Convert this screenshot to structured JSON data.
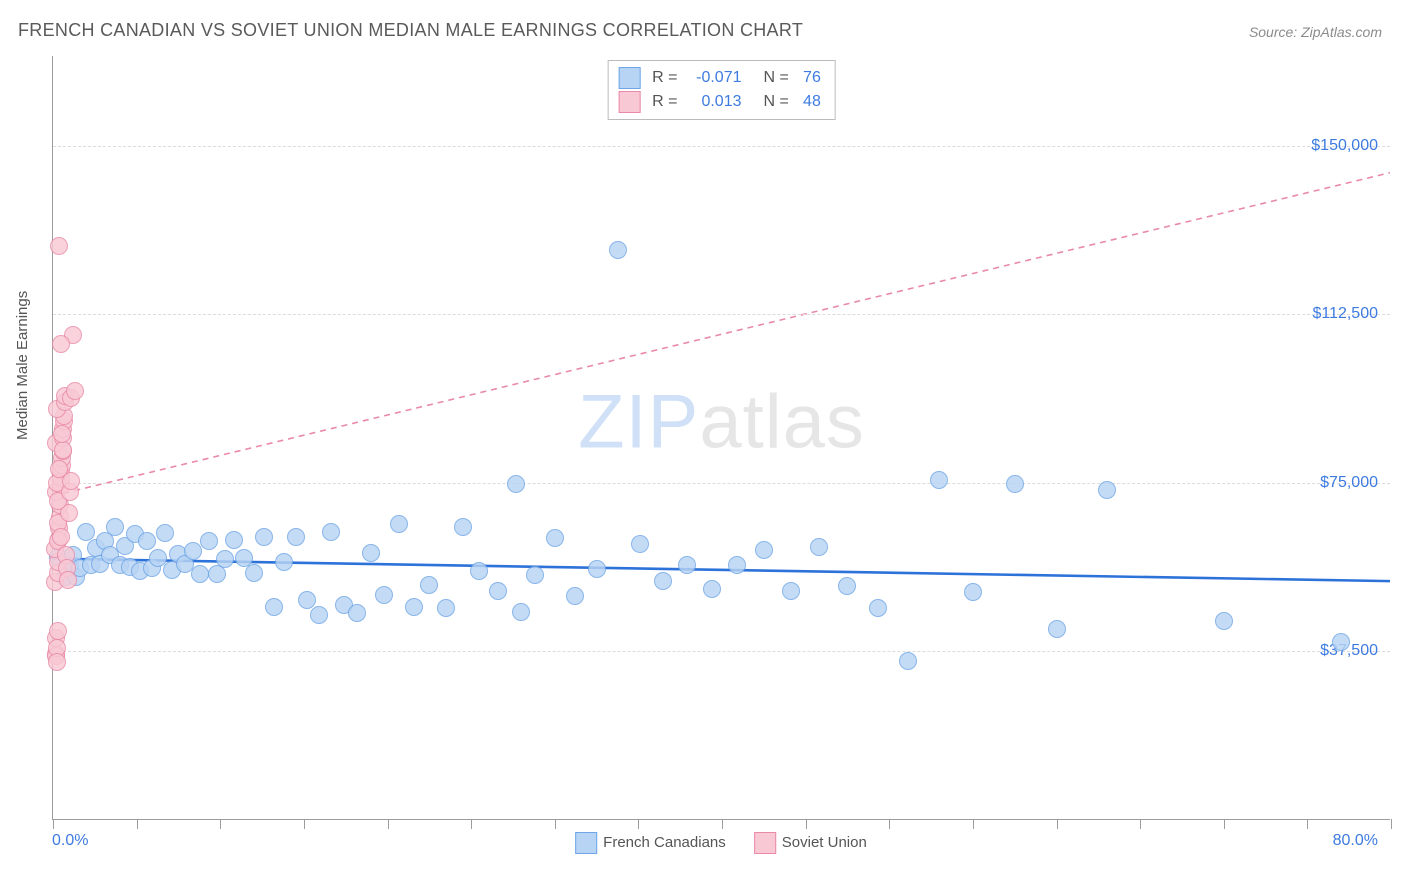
{
  "title": "FRENCH CANADIAN VS SOVIET UNION MEDIAN MALE EARNINGS CORRELATION CHART",
  "source_label": "Source: ZipAtlas.com",
  "ylabel": "Median Male Earnings",
  "watermark": {
    "part1": "ZIP",
    "part2": "atlas"
  },
  "chart": {
    "type": "scatter",
    "background_color": "#ffffff",
    "grid_color": "#dcdcdc",
    "axis_color": "#9c9c9c",
    "tick_label_color": "#3d7be0",
    "label_color": "#555555",
    "title_color": "#5a5a5a",
    "title_fontsize": 18,
    "label_fontsize": 15,
    "tick_fontsize": 16,
    "x": {
      "min": 0.0,
      "max": 80.0,
      "min_label": "0.0%",
      "max_label": "80.0%",
      "ticks": [
        0,
        5,
        10,
        15,
        20,
        25,
        30,
        35,
        40,
        45,
        50,
        55,
        60,
        65,
        70,
        75,
        80
      ]
    },
    "y": {
      "min": 0,
      "max": 170000,
      "gridlines": [
        37500,
        75000,
        112500,
        150000
      ],
      "gridlabels": [
        "$37,500",
        "$75,000",
        "$112,500",
        "$150,000"
      ]
    },
    "series": [
      {
        "name": "French Canadians",
        "fill_color": "#b8d4f4",
        "stroke_color": "#6fa5e6",
        "marker_radius": 9,
        "marker_opacity": 0.82,
        "trend": {
          "y_at_xmin": 58000,
          "y_at_xmax": 53000,
          "stroke": "#2d72d9",
          "width": 2.6,
          "dash": "none"
        },
        "stats": {
          "R": "-0.071",
          "N": "76"
        },
        "points": [
          [
            0.3,
            58500
          ],
          [
            0.7,
            54000
          ],
          [
            1.0,
            56400
          ],
          [
            1.2,
            59000
          ],
          [
            1.4,
            54000
          ],
          [
            1.6,
            56000
          ],
          [
            2.0,
            64000
          ],
          [
            2.3,
            56700
          ],
          [
            2.6,
            60500
          ],
          [
            2.8,
            57000
          ],
          [
            3.1,
            62000
          ],
          [
            3.4,
            59000
          ],
          [
            3.7,
            65200
          ],
          [
            4.0,
            56800
          ],
          [
            4.3,
            60900
          ],
          [
            4.6,
            56300
          ],
          [
            4.9,
            63700
          ],
          [
            5.2,
            55500
          ],
          [
            5.6,
            62000
          ],
          [
            5.9,
            56100
          ],
          [
            6.3,
            58400
          ],
          [
            6.7,
            63900
          ],
          [
            7.1,
            55700
          ],
          [
            7.5,
            59200
          ],
          [
            7.9,
            57000
          ],
          [
            8.4,
            59800
          ],
          [
            8.8,
            54700
          ],
          [
            9.3,
            62000
          ],
          [
            9.8,
            54800
          ],
          [
            10.3,
            58100
          ],
          [
            10.8,
            62400
          ],
          [
            11.4,
            58400
          ],
          [
            12.0,
            55000
          ],
          [
            12.6,
            63000
          ],
          [
            13.2,
            47400
          ],
          [
            13.8,
            57500
          ],
          [
            14.5,
            63000
          ],
          [
            15.2,
            49000
          ],
          [
            15.9,
            45700
          ],
          [
            16.6,
            64100
          ],
          [
            17.4,
            47800
          ],
          [
            18.2,
            46000
          ],
          [
            19.0,
            59400
          ],
          [
            19.8,
            50000
          ],
          [
            20.7,
            65800
          ],
          [
            21.6,
            47400
          ],
          [
            22.5,
            52200
          ],
          [
            23.5,
            47100
          ],
          [
            24.5,
            65100
          ],
          [
            25.5,
            55400
          ],
          [
            26.6,
            51000
          ],
          [
            27.7,
            74800
          ],
          [
            28.0,
            46300
          ],
          [
            28.8,
            54600
          ],
          [
            30.0,
            62700
          ],
          [
            31.2,
            49900
          ],
          [
            32.5,
            55800
          ],
          [
            33.8,
            126800
          ],
          [
            35.1,
            61400
          ],
          [
            36.5,
            53100
          ],
          [
            37.9,
            56800
          ],
          [
            39.4,
            51500
          ],
          [
            40.9,
            56800
          ],
          [
            42.5,
            60000
          ],
          [
            44.1,
            50900
          ],
          [
            45.8,
            60700
          ],
          [
            47.5,
            52000
          ],
          [
            49.3,
            47100
          ],
          [
            51.1,
            35400
          ],
          [
            53.0,
            75700
          ],
          [
            55.0,
            50800
          ],
          [
            57.5,
            74700
          ],
          [
            60.0,
            42500
          ],
          [
            63.0,
            73500
          ],
          [
            70.0,
            44200
          ],
          [
            77.0,
            39500
          ]
        ]
      },
      {
        "name": "Soviet Union",
        "fill_color": "#f8c9d5",
        "stroke_color": "#e98aa6",
        "marker_radius": 9,
        "marker_opacity": 0.82,
        "trend": {
          "y_at_xmin": 72000,
          "y_at_xmax": 144000,
          "stroke": "#e98aa6",
          "width": 1.6,
          "dash": "6 5"
        },
        "stats": {
          "R": "0.013",
          "N": "48"
        },
        "points": [
          [
            0.15,
            37000
          ],
          [
            0.18,
            36500
          ],
          [
            0.2,
            40500
          ],
          [
            0.22,
            38200
          ],
          [
            0.25,
            35200
          ],
          [
            0.28,
            42000
          ],
          [
            0.1,
            53000
          ],
          [
            0.3,
            55000
          ],
          [
            0.32,
            57500
          ],
          [
            0.12,
            60200
          ],
          [
            0.35,
            62500
          ],
          [
            0.38,
            65000
          ],
          [
            0.4,
            67500
          ],
          [
            0.42,
            70000
          ],
          [
            0.15,
            72900
          ],
          [
            0.45,
            74500
          ],
          [
            0.48,
            76000
          ],
          [
            0.5,
            77800
          ],
          [
            0.52,
            79000
          ],
          [
            0.55,
            80500
          ],
          [
            0.58,
            82000
          ],
          [
            0.2,
            83800
          ],
          [
            0.6,
            85000
          ],
          [
            0.62,
            87000
          ],
          [
            0.22,
            75000
          ],
          [
            0.65,
            88800
          ],
          [
            0.68,
            90000
          ],
          [
            0.25,
            91500
          ],
          [
            0.7,
            93000
          ],
          [
            0.72,
            94400
          ],
          [
            0.28,
            62000
          ],
          [
            0.8,
            59000
          ],
          [
            0.85,
            56000
          ],
          [
            0.9,
            53300
          ],
          [
            0.3,
            66000
          ],
          [
            0.95,
            68400
          ],
          [
            0.32,
            71000
          ],
          [
            1.0,
            73000
          ],
          [
            1.05,
            75400
          ],
          [
            1.1,
            93800
          ],
          [
            0.35,
            78000
          ],
          [
            1.2,
            108000
          ],
          [
            0.45,
            106000
          ],
          [
            1.3,
            95400
          ],
          [
            0.5,
            63000
          ],
          [
            0.6,
            82400
          ],
          [
            0.35,
            127800
          ],
          [
            0.55,
            86000
          ]
        ]
      }
    ],
    "legend": {
      "items": [
        {
          "label": "French Canadians",
          "fill": "#b8d4f4",
          "stroke": "#6fa5e6"
        },
        {
          "label": "Soviet Union",
          "fill": "#f8c9d5",
          "stroke": "#e98aa6"
        }
      ]
    }
  }
}
